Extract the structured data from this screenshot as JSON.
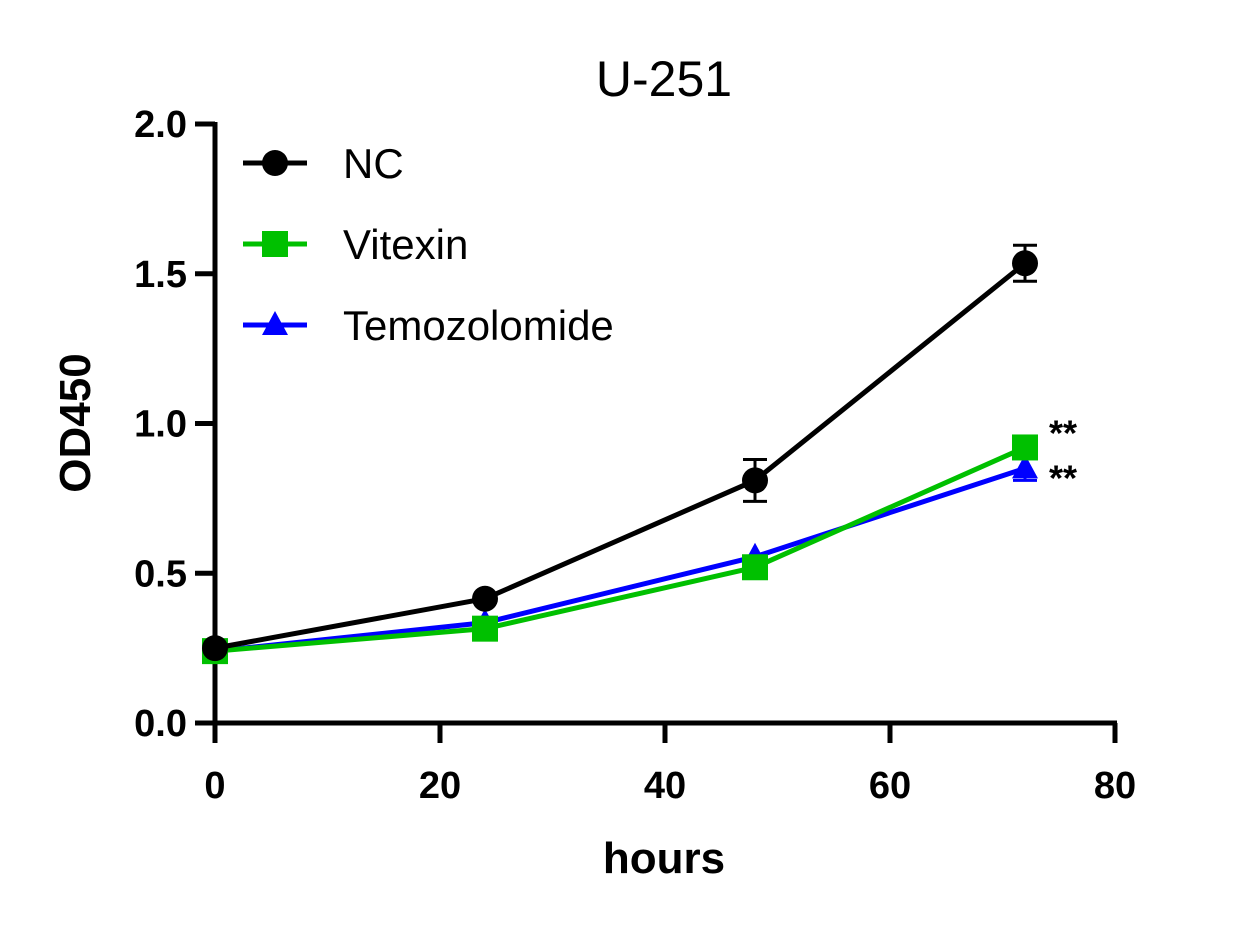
{
  "chart_data": {
    "type": "line",
    "title": "U-251",
    "xlabel": "hours",
    "ylabel": "OD450",
    "xlim": [
      0,
      80
    ],
    "ylim": [
      0,
      2.0
    ],
    "xticks": [
      0,
      20,
      40,
      60,
      80
    ],
    "yticks": [
      0.0,
      0.5,
      1.0,
      1.5,
      2.0
    ],
    "xtick_labels": [
      "0",
      "20",
      "40",
      "60",
      "80"
    ],
    "ytick_labels": [
      "0.0",
      "0.5",
      "1.0",
      "1.5",
      "2.0"
    ],
    "grid": false,
    "legend_position": "top-left",
    "x": [
      0,
      24,
      48,
      72
    ],
    "series": [
      {
        "name": "NC",
        "color": "#000000",
        "marker": "circle",
        "values": [
          0.25,
          0.415,
          0.81,
          1.535
        ],
        "errors": [
          0.0,
          0.0,
          0.07,
          0.06
        ]
      },
      {
        "name": "Vitexin",
        "color": "#00c000",
        "marker": "square",
        "values": [
          0.24,
          0.315,
          0.52,
          0.92
        ],
        "errors": [
          0.0,
          0.0,
          0.0,
          0.0
        ]
      },
      {
        "name": "Temozolomide",
        "color": "#0000ff",
        "marker": "triangle",
        "values": [
          0.24,
          0.335,
          0.555,
          0.85
        ],
        "errors": [
          0.0,
          0.0,
          0.0,
          0.04
        ]
      }
    ],
    "annotations": [
      {
        "text": "**",
        "series": "Vitexin",
        "x": 72
      },
      {
        "text": "**",
        "series": "Temozolomide",
        "x": 72
      }
    ]
  }
}
